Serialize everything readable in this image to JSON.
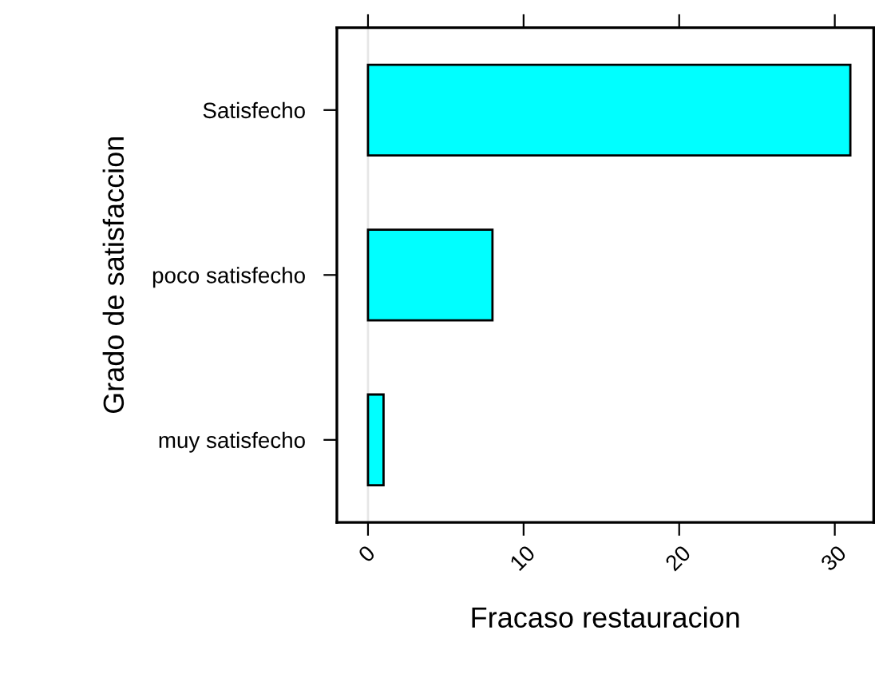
{
  "chart_data": {
    "type": "bar",
    "orientation": "horizontal",
    "xlabel": "Fracaso restauracion",
    "ylabel": "Grado de satisfaccion",
    "categories": [
      "Satisfecho",
      "poco satisfecho",
      "muy satisfecho"
    ],
    "values": [
      31,
      8,
      1
    ],
    "color": "#00ffff",
    "xlim": [
      -2,
      32.5
    ],
    "xticks": [
      0,
      10,
      20,
      30
    ],
    "ref_lines": [
      {
        "axis": "x",
        "value": 0,
        "color": "#e6e6e6"
      }
    ],
    "grid": false,
    "legend": false
  }
}
